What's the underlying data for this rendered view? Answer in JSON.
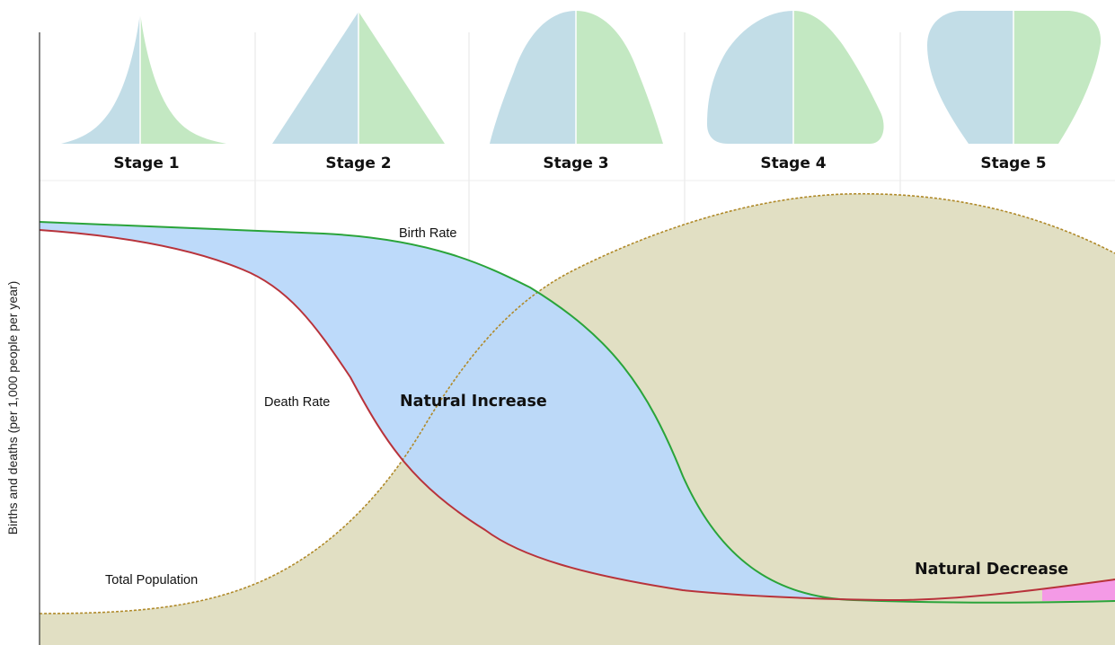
{
  "colors": {
    "male": "#c2dde7",
    "female": "#c3e8c2",
    "natural_increase": "#bbd9fa",
    "natural_decrease": "#f49ae6",
    "population_fill": "#e1dfc3",
    "population_line": "#b08a2a",
    "birth_line": "#2aa43a",
    "death_line": "#b8333b",
    "grid": "#e6e6e6",
    "axis": "#333333"
  },
  "axis": {
    "ylabel": "Births and deaths (per 1,000 people per year)"
  },
  "stages": [
    {
      "label": "Stage 1",
      "pyramid_shape": "concave-narrow"
    },
    {
      "label": "Stage 2",
      "pyramid_shape": "triangle"
    },
    {
      "label": "Stage 3",
      "pyramid_shape": "dome"
    },
    {
      "label": "Stage 4",
      "pyramid_shape": "beehive"
    },
    {
      "label": "Stage 5",
      "pyramid_shape": "inverted"
    }
  ],
  "labels": {
    "birth_rate": "Birth Rate",
    "death_rate": "Death Rate",
    "total_population": "Total Population",
    "natural_increase": "Natural Increase",
    "natural_decrease": "Natural Decrease"
  }
}
